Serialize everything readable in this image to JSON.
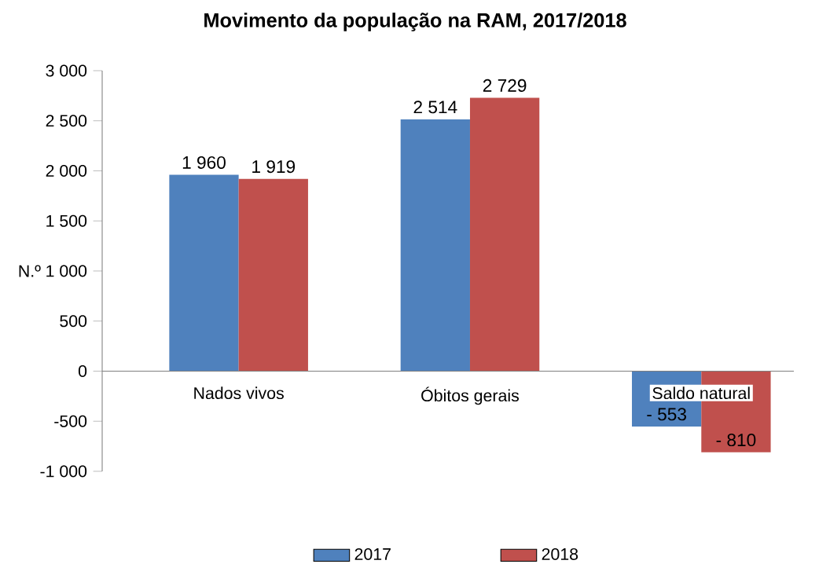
{
  "chart_data": {
    "type": "bar",
    "title": "Movimento da população na RAM, 2017/2018",
    "ylabel": "N.º",
    "categories": [
      "Nados vivos",
      "Óbitos gerais",
      "Saldo natural"
    ],
    "series": [
      {
        "name": "2017",
        "color": "#4f81bd",
        "values": [
          1960,
          2514,
          -553
        ],
        "value_labels": [
          "1 960",
          "2 514",
          "- 553"
        ]
      },
      {
        "name": "2018",
        "color": "#c0504d",
        "values": [
          1919,
          2729,
          -810
        ],
        "value_labels": [
          "1 919",
          "2 729",
          "- 810"
        ]
      }
    ],
    "ylim": [
      -1000,
      3000
    ],
    "yticks": [
      {
        "value": -1000,
        "label": "-1 000"
      },
      -500,
      0,
      500,
      {
        "value": 1000,
        "label": "1 000"
      },
      {
        "value": 1500,
        "label": "1 500"
      },
      {
        "value": 2000,
        "label": "2 000"
      },
      {
        "value": 2500,
        "label": "2 500"
      },
      {
        "value": 3000,
        "label": "3 000"
      }
    ],
    "grid": false,
    "legend": "bottom"
  }
}
